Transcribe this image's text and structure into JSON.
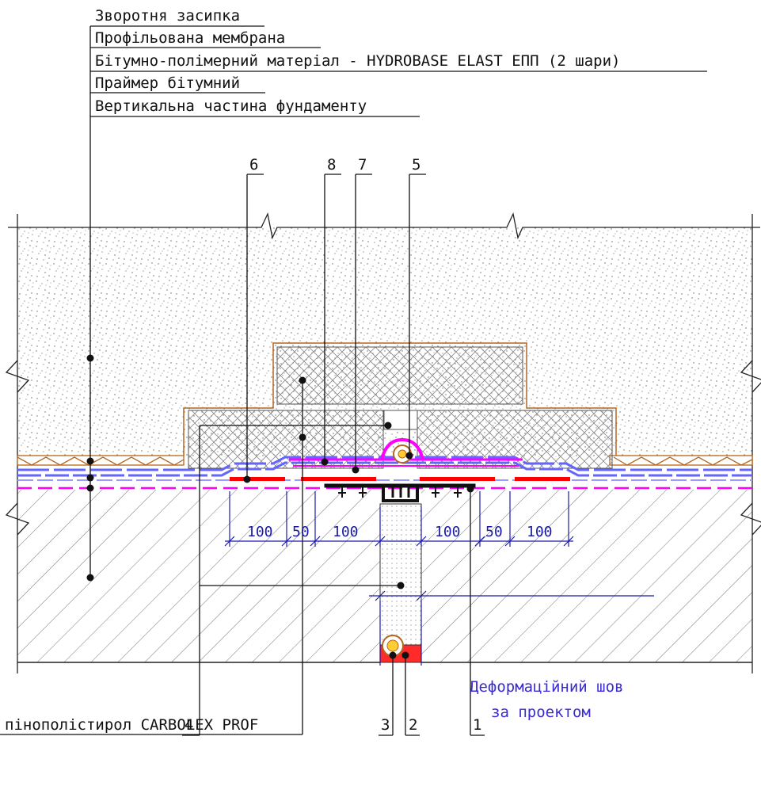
{
  "layers": [
    "Зворотня засипка",
    "Профільована мембрана",
    "Бітумно-полімерний матеріал - HYDROBASE ELAST ЕПП (2 шари)",
    "Праймер бітумний",
    "Вертикальна частина фундаменту"
  ],
  "callouts_top": [
    "6",
    "8",
    "7",
    "5"
  ],
  "callouts_bottom": [
    "4",
    "3",
    "2",
    "1"
  ],
  "insulation_label": "пінополістирол CARBOLEX PROF",
  "dimensions": [
    "100",
    "50",
    "100",
    "100",
    "50",
    "100"
  ],
  "joint_note": {
    "line1": "Деформаційний шов",
    "line2": "за проектом"
  },
  "colors": {
    "membrane_blue": "#6464ff",
    "primer_magenta": "#ff00ff",
    "tape_red": "#ff0000",
    "dim_blue": "#1a1aa6",
    "drain_brown": "#b5651d"
  }
}
